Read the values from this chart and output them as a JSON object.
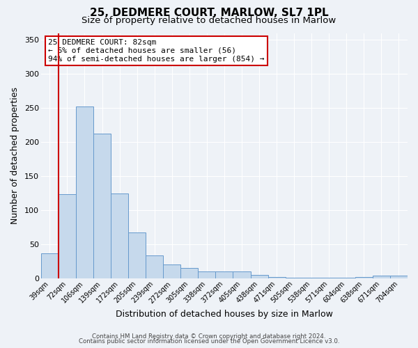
{
  "title": "25, DEDMERE COURT, MARLOW, SL7 1PL",
  "subtitle": "Size of property relative to detached houses in Marlow",
  "xlabel": "Distribution of detached houses by size in Marlow",
  "ylabel": "Number of detached properties",
  "categories": [
    "39sqm",
    "72sqm",
    "106sqm",
    "139sqm",
    "172sqm",
    "205sqm",
    "239sqm",
    "272sqm",
    "305sqm",
    "338sqm",
    "372sqm",
    "405sqm",
    "438sqm",
    "471sqm",
    "505sqm",
    "538sqm",
    "571sqm",
    "604sqm",
    "638sqm",
    "671sqm",
    "704sqm"
  ],
  "values": [
    37,
    123,
    252,
    212,
    124,
    67,
    34,
    20,
    15,
    10,
    10,
    10,
    5,
    2,
    1,
    1,
    1,
    1,
    2,
    4,
    4
  ],
  "bar_color": "#c6d9ec",
  "bar_edge_color": "#6699cc",
  "vline_color": "#cc0000",
  "annotation_lines": [
    "25 DEDMERE COURT: 82sqm",
    "← 6% of detached houses are smaller (56)",
    "94% of semi-detached houses are larger (854) →"
  ],
  "annotation_box_color": "#ffffff",
  "annotation_box_edge_color": "#cc0000",
  "ylim": [
    0,
    360
  ],
  "yticks": [
    0,
    50,
    100,
    150,
    200,
    250,
    300,
    350
  ],
  "background_color": "#eef2f7",
  "grid_color": "#ffffff",
  "footer_line1": "Contains HM Land Registry data © Crown copyright and database right 2024.",
  "footer_line2": "Contains public sector information licensed under the Open Government Licence v3.0.",
  "title_fontsize": 11,
  "subtitle_fontsize": 9.5
}
